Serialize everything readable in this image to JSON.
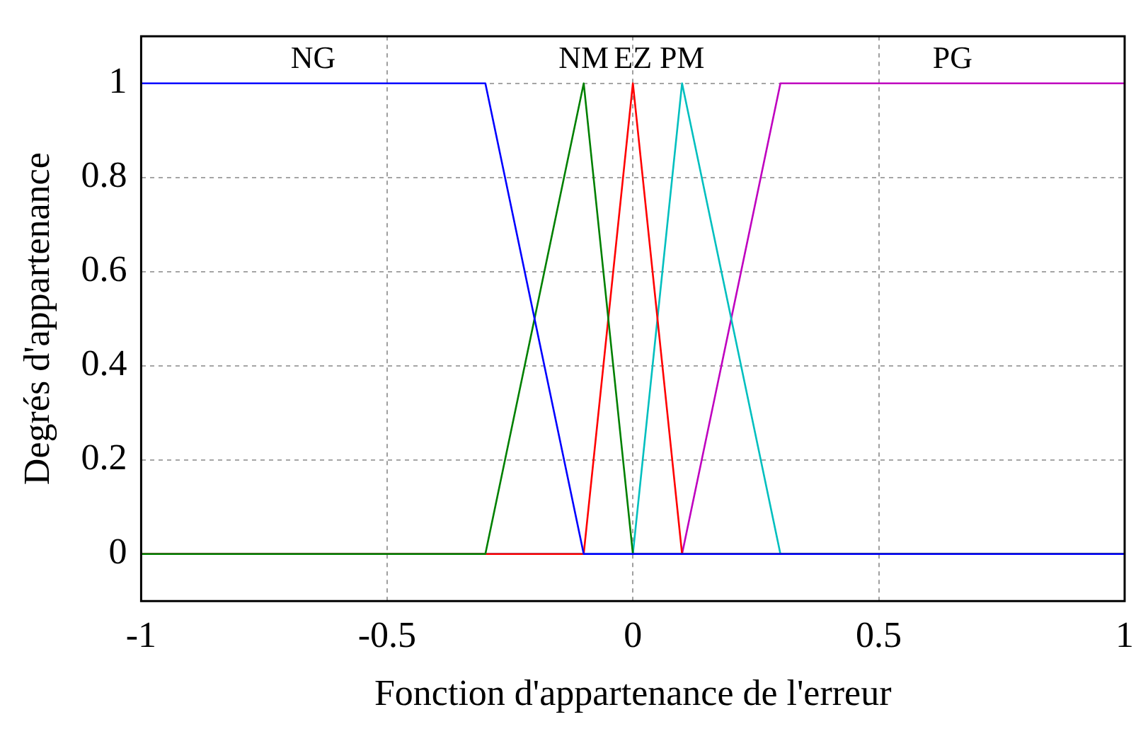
{
  "chart_data": {
    "type": "line",
    "xlabel": "Fonction d'appartenance de l'erreur",
    "ylabel": "Degrés d'appartenance",
    "xlim": [
      -1,
      1
    ],
    "xticks": [
      -1,
      -0.5,
      0,
      0.5,
      1
    ],
    "ylim": [
      -0.1,
      1.1
    ],
    "yticks": [
      0,
      0.2,
      0.4,
      0.6,
      0.8,
      1
    ],
    "grid": true,
    "legend": false,
    "marker": "none",
    "line_style": "solid",
    "series": [
      {
        "name": "NG",
        "color": "#0000ff",
        "x": [
          -1,
          -0.3,
          -0.1,
          1
        ],
        "values": [
          1,
          1,
          0,
          0
        ]
      },
      {
        "name": "NM",
        "color": "#008000",
        "x": [
          -1,
          -0.3,
          -0.1,
          0,
          1
        ],
        "values": [
          0,
          0,
          1,
          0,
          0
        ]
      },
      {
        "name": "EZ",
        "color": "#ff0000",
        "x": [
          -1,
          -0.1,
          0,
          0.1,
          1
        ],
        "values": [
          0,
          0,
          1,
          0,
          0
        ]
      },
      {
        "name": "PM",
        "color": "#00bfbf",
        "x": [
          -1,
          0,
          0.1,
          0.3,
          1
        ],
        "values": [
          0,
          0,
          1,
          0,
          0
        ]
      },
      {
        "name": "PG",
        "color": "#bf00bf",
        "x": [
          -1,
          0.1,
          0.3,
          1
        ],
        "values": [
          0,
          0,
          1,
          1
        ]
      }
    ]
  }
}
